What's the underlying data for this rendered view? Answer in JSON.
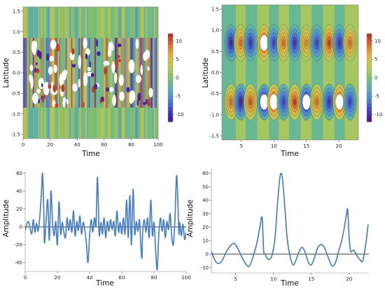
{
  "chart_data": [
    {
      "type": "heatmap",
      "xlabel": "Time",
      "ylabel": "Latitude",
      "xlim": [
        0,
        100
      ],
      "ylim": [
        -1.6,
        1.6
      ],
      "x_ticks": [
        "0",
        "20",
        "40",
        "60",
        "80",
        "100"
      ],
      "y_ticks": [
        "-1.5",
        "-1.0",
        "-0.5",
        "0.0",
        "0.5",
        "1.0",
        "1.5"
      ],
      "colorbar": {
        "ticks": [
          "10",
          "5",
          "0",
          "-5",
          "-10"
        ],
        "range": [
          -12,
          12
        ]
      },
      "pattern": "noisy vertical stripes with white saturated patches between latitudes -0.8 and 0.8"
    },
    {
      "type": "heatmap",
      "xlabel": "Time",
      "ylabel": "Latitude",
      "xlim": [
        2,
        23
      ],
      "ylim": [
        -1.6,
        1.6
      ],
      "x_ticks": [
        "5",
        "10",
        "15",
        "20"
      ],
      "y_ticks": [
        "-1.5",
        "-1.0",
        "-0.5",
        "0.0",
        "0.5",
        "1.0",
        "1.5"
      ],
      "colorbar": {
        "ticks": [
          "10",
          "5",
          "0",
          "-5",
          "-10"
        ],
        "range": [
          -12,
          12
        ]
      },
      "pattern": "alternating cells of opposite sign centred near latitudes 0.7 and -0.7",
      "cells_north": [
        {
          "x": 3.4,
          "v": -11
        },
        {
          "x": 4.9,
          "v": 9
        },
        {
          "x": 6.4,
          "v": -10
        },
        {
          "x": 8.5,
          "v": 13
        },
        {
          "x": 10.0,
          "v": -9
        },
        {
          "x": 11.5,
          "v": 9
        },
        {
          "x": 13.2,
          "v": -10
        },
        {
          "x": 15.0,
          "v": 8
        },
        {
          "x": 16.6,
          "v": -9
        },
        {
          "x": 18.5,
          "v": 11
        },
        {
          "x": 20.1,
          "v": -10
        },
        {
          "x": 21.7,
          "v": 9
        }
      ],
      "cells_south": [
        {
          "x": 3.4,
          "v": 9
        },
        {
          "x": 4.9,
          "v": -11
        },
        {
          "x": 6.4,
          "v": 10
        },
        {
          "x": 8.5,
          "v": -13
        },
        {
          "x": 10.0,
          "v": 14
        },
        {
          "x": 11.5,
          "v": -9
        },
        {
          "x": 13.2,
          "v": 11
        },
        {
          "x": 15.0,
          "v": -13
        },
        {
          "x": 16.6,
          "v": 9
        },
        {
          "x": 18.5,
          "v": -10
        },
        {
          "x": 20.1,
          "v": 13
        },
        {
          "x": 21.7,
          "v": -9
        }
      ]
    },
    {
      "type": "line",
      "xlabel": "Time",
      "ylabel": "Amplitude",
      "xlim": [
        0,
        100
      ],
      "ylim": [
        -50,
        62
      ],
      "x_ticks": [
        "0",
        "20",
        "40",
        "60",
        "80",
        "100"
      ],
      "y_ticks": [
        "-40",
        "-20",
        "0",
        "20",
        "40",
        "60"
      ],
      "baseline": 0,
      "x": [
        0,
        2,
        4,
        5,
        6,
        7,
        8,
        9,
        10,
        10.8,
        11.5,
        12,
        13,
        14,
        15,
        16,
        17,
        18,
        19,
        20,
        21,
        22,
        23,
        24,
        25,
        26,
        27,
        28,
        29,
        30,
        31,
        32,
        33,
        34,
        35,
        36,
        37,
        38,
        39,
        40,
        41,
        42,
        43,
        44,
        44.8,
        45.5,
        46,
        47,
        48,
        49,
        50,
        51,
        52,
        53,
        54,
        55,
        56,
        57,
        58,
        59,
        60,
        61,
        62,
        63,
        64,
        65,
        66,
        67,
        68,
        69,
        70,
        71,
        71.8,
        72.5,
        73,
        74,
        75,
        76,
        77,
        78,
        79,
        80,
        81,
        82,
        83,
        84,
        85,
        86,
        87,
        88,
        89,
        90,
        91,
        92,
        93,
        94,
        94.8,
        95.5,
        96,
        97,
        98,
        99,
        100
      ],
      "values": [
        -4,
        6,
        -8,
        8,
        -6,
        4,
        -5,
        10,
        35,
        60,
        20,
        -18,
        8,
        30,
        -15,
        40,
        5,
        -10,
        6,
        -20,
        28,
        -8,
        5,
        -6,
        -12,
        10,
        -4,
        8,
        -6,
        18,
        -10,
        6,
        -4,
        12,
        -8,
        5,
        -3,
        -18,
        -40,
        -10,
        8,
        -6,
        10,
        2,
        55,
        22,
        -10,
        5,
        -8,
        10,
        -12,
        6,
        -5,
        8,
        -3,
        6,
        -10,
        18,
        -6,
        5,
        -8,
        10,
        -8,
        30,
        -12,
        35,
        -20,
        42,
        -8,
        6,
        -5,
        8,
        -20,
        -35,
        -5,
        8,
        -6,
        10,
        -12,
        30,
        -10,
        5,
        -25,
        -48,
        -8,
        10,
        -5,
        8,
        -12,
        6,
        -3,
        15,
        -10,
        -20,
        8,
        57,
        30,
        -8,
        5,
        -10,
        3,
        -14,
        -6
      ]
    },
    {
      "type": "line",
      "xlabel": "Time",
      "ylabel": "Amplitude",
      "xlim": [
        1.8,
        22.6
      ],
      "ylim": [
        -14,
        64
      ],
      "x_ticks": [
        "5",
        "10",
        "15",
        "20"
      ],
      "y_ticks": [
        "-10",
        "0",
        "10",
        "20",
        "30",
        "40",
        "50",
        "60"
      ],
      "baseline": 0,
      "x": [
        1.8,
        2.3,
        2.8,
        3.3,
        3.8,
        4.3,
        4.8,
        5.3,
        5.8,
        6.3,
        6.8,
        7.3,
        7.8,
        8.2,
        8.5,
        8.7,
        8.9,
        9.3,
        9.8,
        10.2,
        10.5,
        10.8,
        11.0,
        11.2,
        11.5,
        11.8,
        12.2,
        12.6,
        13.0,
        13.4,
        13.8,
        14.2,
        14.6,
        15.0,
        15.4,
        15.8,
        16.2,
        16.6,
        17.0,
        17.4,
        17.8,
        18.2,
        18.6,
        19.0,
        19.3,
        19.6,
        19.8,
        20.0,
        20.2,
        20.6,
        21.0,
        21.4,
        21.8,
        22.2,
        22.5
      ],
      "values": [
        2,
        -5,
        -7,
        -4,
        2,
        6,
        8,
        4,
        -2,
        -7,
        -9,
        -2,
        8,
        20,
        27,
        3,
        0,
        -4,
        -1,
        12,
        35,
        55,
        60,
        55,
        35,
        12,
        -2,
        -8,
        -4,
        2,
        5,
        1,
        -6,
        -8,
        -3,
        4,
        7,
        6,
        1,
        -5,
        -9,
        -6,
        2,
        10,
        18,
        28,
        33,
        12,
        2,
        3,
        -1,
        -4,
        -5,
        8,
        22
      ]
    }
  ]
}
